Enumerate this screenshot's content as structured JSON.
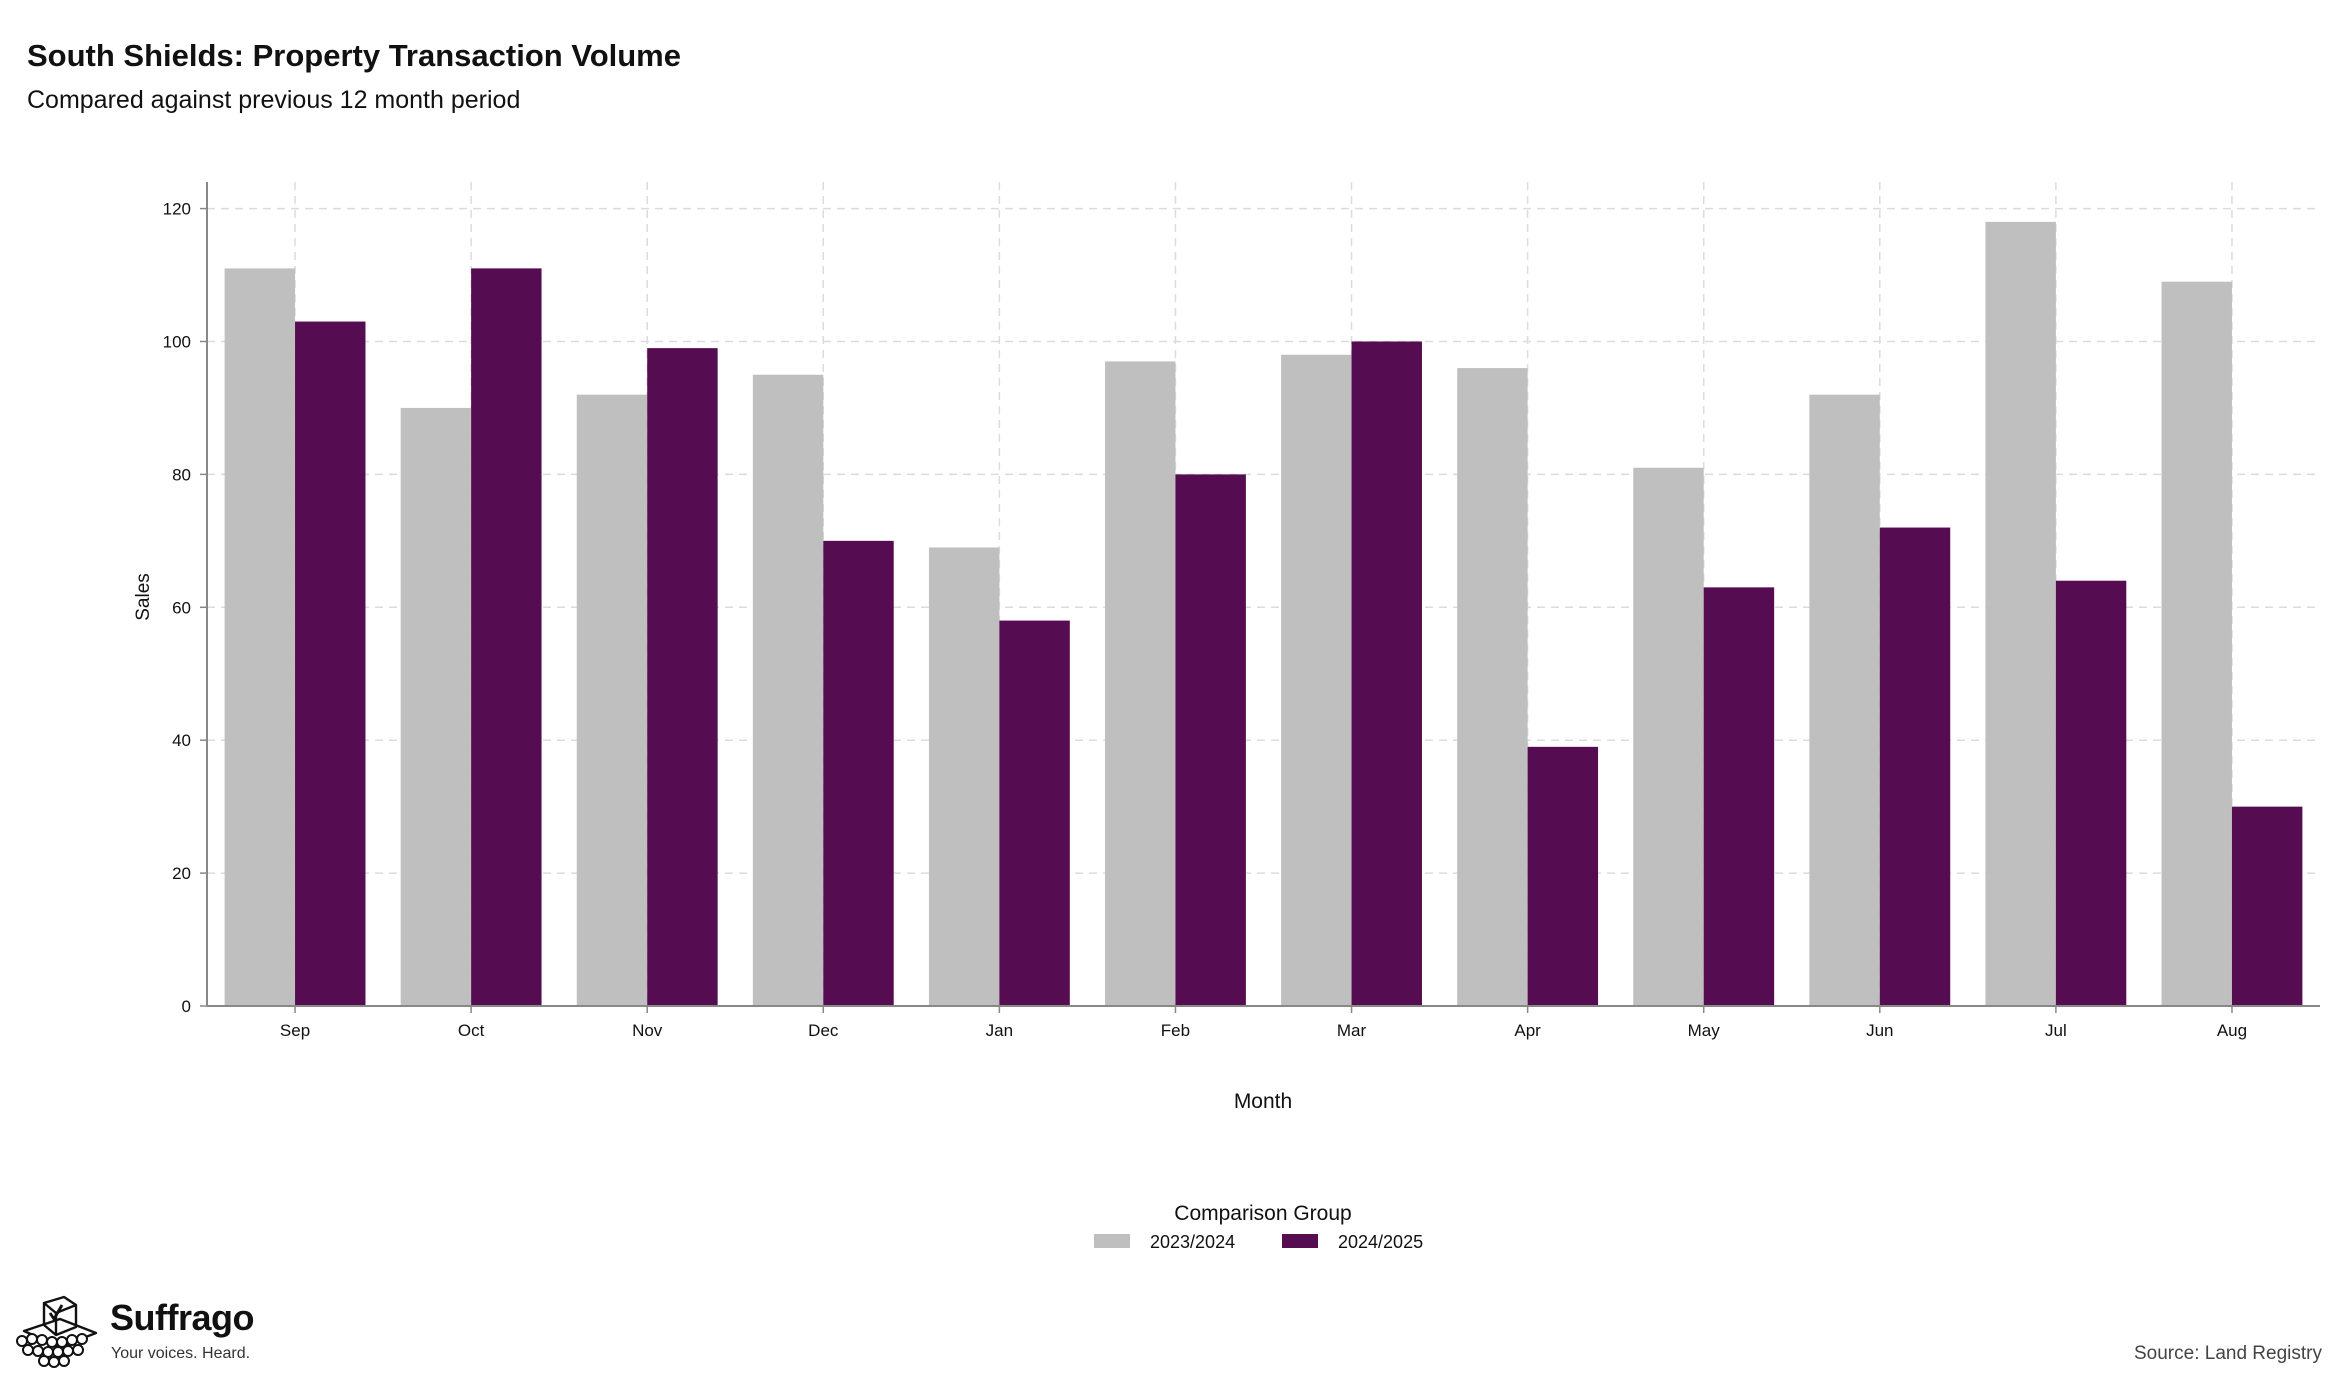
{
  "header": {
    "title": "South Shields: Property Transaction Volume",
    "subtitle": "Compared against previous 12 month period"
  },
  "footer": {
    "brand": "Suffrago",
    "tagline": "Your voices. Heard.",
    "source": "Source: Land Registry"
  },
  "colors": {
    "series_2023_2024": "#bfbfbf",
    "series_2024_2025": "#560c50",
    "grid": "#dcdcdc",
    "axis": "#888888"
  },
  "chart_data": {
    "type": "bar",
    "xlabel": "Month",
    "ylabel": "Sales",
    "ylim": [
      0,
      124
    ],
    "yticks": [
      0,
      20,
      40,
      60,
      80,
      100,
      120
    ],
    "grid": true,
    "legend_title": "Comparison Group",
    "legend_position": "bottom",
    "categories": [
      "Sep",
      "Oct",
      "Nov",
      "Dec",
      "Jan",
      "Feb",
      "Mar",
      "Apr",
      "May",
      "Jun",
      "Jul",
      "Aug"
    ],
    "series": [
      {
        "name": "2023/2024",
        "values": [
          111,
          90,
          92,
          95,
          69,
          97,
          98,
          96,
          81,
          92,
          118,
          109
        ]
      },
      {
        "name": "2024/2025",
        "values": [
          103,
          111,
          99,
          70,
          58,
          80,
          100,
          39,
          63,
          72,
          64,
          30
        ]
      }
    ]
  }
}
